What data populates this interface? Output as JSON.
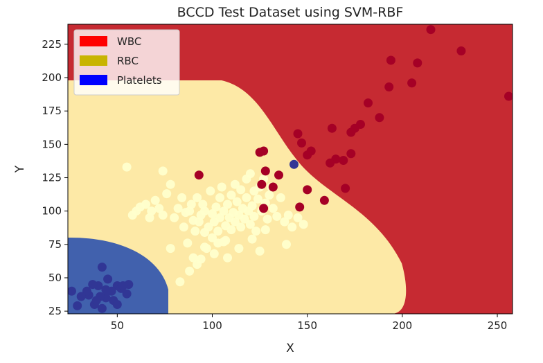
{
  "chart_data": {
    "type": "scatter",
    "title": "BCCD Test Dataset using SVM-RBF",
    "xlabel": "X",
    "ylabel": "Y",
    "xlim": [
      24,
      258
    ],
    "ylim": [
      23,
      240
    ],
    "xticks": [
      "50",
      "100",
      "150",
      "200",
      "250"
    ],
    "yticks": [
      "25",
      "50",
      "75",
      "100",
      "125",
      "150",
      "175",
      "200",
      "225"
    ],
    "grid": false,
    "legend_position": "top-left",
    "legend": [
      {
        "label": "WBC",
        "color": "#ff0000"
      },
      {
        "label": "RBC",
        "color": "#c8b400"
      },
      {
        "label": "Platelets",
        "color": "#0000ff"
      }
    ],
    "regions": [
      {
        "class": "WBC",
        "color": "#c62a32"
      },
      {
        "class": "RBC",
        "color": "#fde9a6"
      },
      {
        "class": "Platelets",
        "color": "#4161ad"
      }
    ],
    "series": [
      {
        "name": "WBC",
        "color": "#a50026",
        "points": [
          [
            215,
            236
          ],
          [
            231,
            220
          ],
          [
            194,
            213
          ],
          [
            208,
            211
          ],
          [
            256,
            186
          ],
          [
            205,
            196
          ],
          [
            193,
            193
          ],
          [
            182,
            181
          ],
          [
            188,
            170
          ],
          [
            163,
            162
          ],
          [
            178,
            165
          ],
          [
            175,
            162
          ],
          [
            173,
            159
          ],
          [
            145,
            158
          ],
          [
            147,
            151
          ],
          [
            152,
            145
          ],
          [
            150,
            142
          ],
          [
            165,
            139
          ],
          [
            169,
            138
          ],
          [
            162,
            136
          ],
          [
            173,
            143
          ],
          [
            125,
            144
          ],
          [
            127,
            145
          ],
          [
            93,
            127
          ],
          [
            135,
            127
          ],
          [
            132,
            118
          ],
          [
            126,
            120
          ],
          [
            150,
            116
          ],
          [
            170,
            117
          ],
          [
            159,
            108
          ],
          [
            146,
            103
          ],
          [
            127,
            102
          ],
          [
            128,
            130
          ]
        ]
      },
      {
        "name": "RBC",
        "color": "#ffffcc",
        "points": [
          [
            55,
            133
          ],
          [
            58,
            97
          ],
          [
            60,
            100
          ],
          [
            62,
            103
          ],
          [
            65,
            105
          ],
          [
            67,
            95
          ],
          [
            68,
            100
          ],
          [
            70,
            108
          ],
          [
            72,
            102
          ],
          [
            74,
            130
          ],
          [
            74,
            97
          ],
          [
            76,
            113
          ],
          [
            78,
            120
          ],
          [
            80,
            95
          ],
          [
            82,
            102
          ],
          [
            84,
            110
          ],
          [
            85,
            88
          ],
          [
            86,
            99
          ],
          [
            87,
            76
          ],
          [
            88,
            100
          ],
          [
            89,
            105
          ],
          [
            90,
            93
          ],
          [
            91,
            85
          ],
          [
            92,
            110
          ],
          [
            92,
            60
          ],
          [
            93,
            92
          ],
          [
            94,
            97
          ],
          [
            94,
            64
          ],
          [
            95,
            105
          ],
          [
            96,
            100
          ],
          [
            97,
            72
          ],
          [
            98,
            88
          ],
          [
            99,
            115
          ],
          [
            100,
            98
          ],
          [
            100,
            80
          ],
          [
            101,
            92
          ],
          [
            102,
            103
          ],
          [
            103,
            85
          ],
          [
            104,
            110
          ],
          [
            104,
            95
          ],
          [
            105,
            118
          ],
          [
            106,
            100
          ],
          [
            107,
            89
          ],
          [
            107,
            78
          ],
          [
            108,
            105
          ],
          [
            109,
            95
          ],
          [
            110,
            112
          ],
          [
            110,
            86
          ],
          [
            111,
            99
          ],
          [
            112,
            120
          ],
          [
            112,
            92
          ],
          [
            113,
            107
          ],
          [
            114,
            97
          ],
          [
            115,
            116
          ],
          [
            115,
            88
          ],
          [
            116,
            102
          ],
          [
            117,
            94
          ],
          [
            118,
            124
          ],
          [
            118,
            110
          ],
          [
            119,
            100
          ],
          [
            120,
            128
          ],
          [
            120,
            90
          ],
          [
            121,
            104
          ],
          [
            122,
            115
          ],
          [
            122,
            96
          ],
          [
            123,
            85
          ],
          [
            124,
            109
          ],
          [
            125,
            118
          ],
          [
            126,
            100
          ],
          [
            127,
            124
          ],
          [
            128,
            106
          ],
          [
            129,
            94
          ],
          [
            130,
            112
          ],
          [
            131,
            118
          ],
          [
            132,
            102
          ],
          [
            134,
            96
          ],
          [
            136,
            110
          ],
          [
            138,
            92
          ],
          [
            140,
            97
          ],
          [
            142,
            88
          ],
          [
            145,
            95
          ],
          [
            148,
            90
          ],
          [
            88,
            55
          ],
          [
            90,
            65
          ],
          [
            83,
            47
          ],
          [
            78,
            72
          ],
          [
            96,
            73
          ],
          [
            101,
            68
          ],
          [
            106,
            77
          ],
          [
            114,
            72
          ],
          [
            121,
            79
          ],
          [
            128,
            86
          ],
          [
            139,
            75
          ],
          [
            125,
            70
          ],
          [
            108,
            65
          ],
          [
            96,
            84
          ],
          [
            103,
            76
          ]
        ]
      },
      {
        "name": "Platelets",
        "color": "#313695",
        "points": [
          [
            143,
            135
          ],
          [
            42,
            58
          ],
          [
            50,
            44
          ],
          [
            56,
            45
          ],
          [
            40,
            44
          ],
          [
            47,
            40
          ],
          [
            35,
            37
          ],
          [
            38,
            30
          ],
          [
            44,
            35
          ],
          [
            52,
            42
          ],
          [
            45,
            49
          ],
          [
            41,
            36
          ],
          [
            48,
            33
          ],
          [
            55,
            38
          ],
          [
            37,
            45
          ],
          [
            34,
            40
          ],
          [
            42,
            27
          ],
          [
            39,
            33
          ],
          [
            29,
            29
          ],
          [
            26,
            40
          ],
          [
            50,
            30
          ],
          [
            53,
            44
          ],
          [
            31,
            36
          ],
          [
            44,
            41
          ]
        ]
      }
    ]
  }
}
